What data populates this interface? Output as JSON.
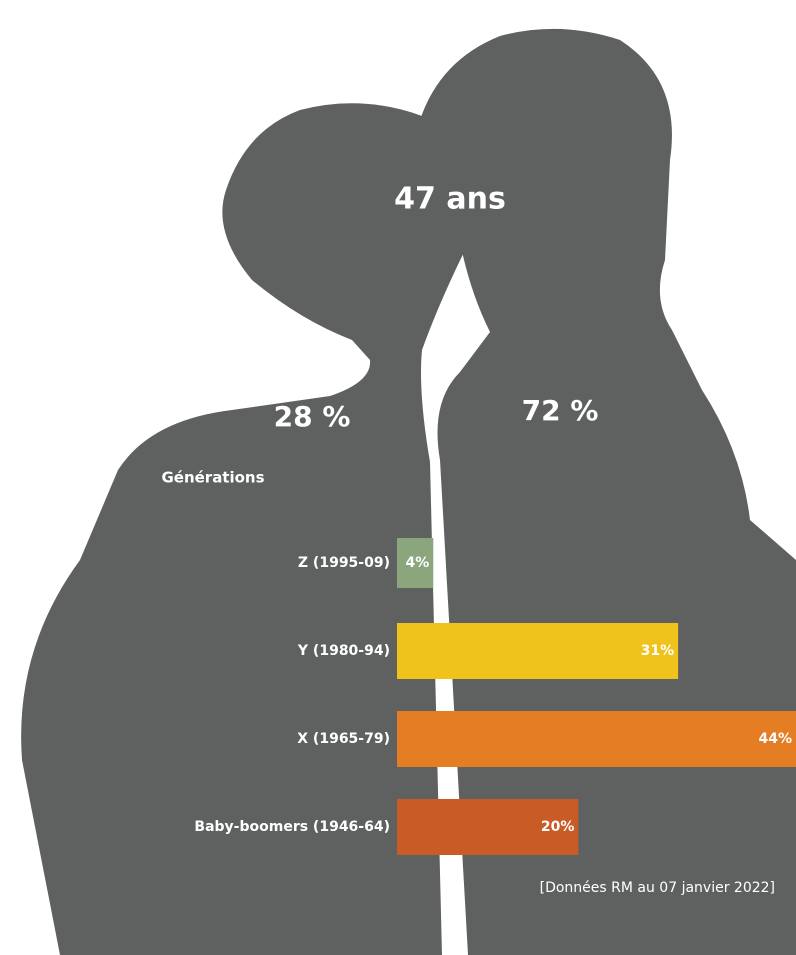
{
  "chart_data": {
    "type": "bar",
    "orientation": "horizontal",
    "annotations": [
      {
        "text": "47 ans"
      },
      {
        "text": "28 %"
      },
      {
        "text": "72 %"
      }
    ],
    "y_label": "Générations",
    "categories": [
      "Z (1995-09)",
      "Y (1980-94)",
      "X (1965-79)",
      "Baby-boomers (1946-64)"
    ],
    "values": [
      4,
      31,
      44,
      20
    ],
    "value_labels": [
      "4%",
      "31%",
      "44%",
      "20%"
    ],
    "colors": [
      "#8ba67c",
      "#f0c21c",
      "#e47d24",
      "#c95b27"
    ],
    "note": "[Données RM au 07 janvier 2022]"
  }
}
